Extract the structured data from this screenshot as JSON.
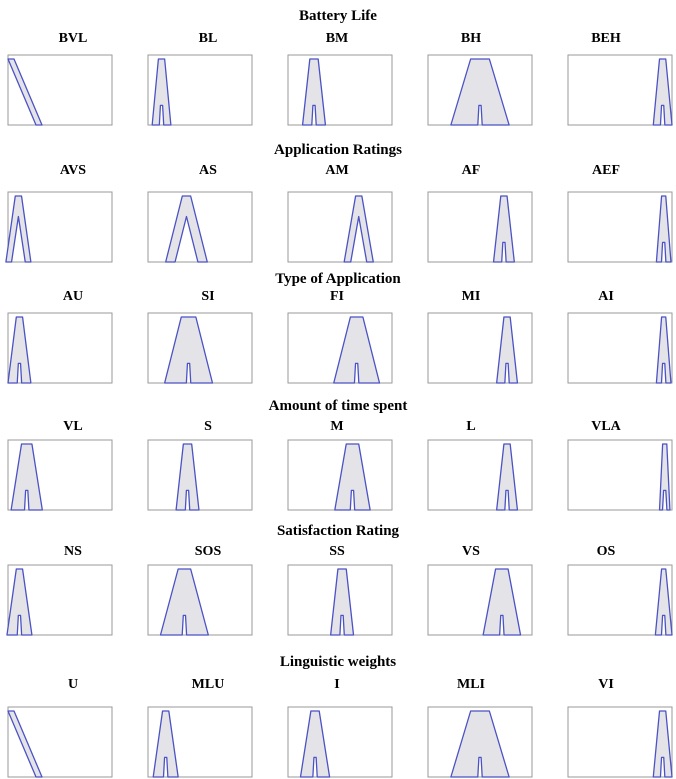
{
  "colors": {
    "outline": "#4b52c4",
    "fill": "#e4e4e8",
    "frame": "#9a9a9a"
  },
  "groups": [
    {
      "title": "Battery Life",
      "items": [
        {
          "label": "BVL",
          "shape": "falling"
        },
        {
          "label": "BL",
          "shape": "peak",
          "center": 0.13,
          "halfTop": 0.03,
          "halfBottom": 0.09
        },
        {
          "label": "BM",
          "shape": "peak",
          "center": 0.25,
          "halfTop": 0.04,
          "halfBottom": 0.11
        },
        {
          "label": "BH",
          "shape": "peak",
          "center": 0.5,
          "halfTop": 0.09,
          "halfBottom": 0.28
        },
        {
          "label": "BEH",
          "shape": "peak",
          "center": 0.91,
          "halfTop": 0.03,
          "halfBottom": 0.09
        }
      ]
    },
    {
      "title": "Application Ratings",
      "items": [
        {
          "label": "AVS",
          "shape": "tent",
          "center": 0.1,
          "halfTop": 0.03,
          "halfBottom": 0.12
        },
        {
          "label": "AS",
          "shape": "tent",
          "center": 0.37,
          "halfTop": 0.04,
          "halfBottom": 0.2
        },
        {
          "label": "AM",
          "shape": "tent",
          "center": 0.68,
          "halfTop": 0.03,
          "halfBottom": 0.14
        },
        {
          "label": "AF",
          "shape": "peak",
          "center": 0.73,
          "halfTop": 0.03,
          "halfBottom": 0.1
        },
        {
          "label": "AEF",
          "shape": "peak",
          "center": 0.92,
          "halfTop": 0.02,
          "halfBottom": 0.07
        }
      ]
    },
    {
      "title": "Type of Application",
      "items": [
        {
          "label": "AU",
          "shape": "peak",
          "center": 0.11,
          "halfTop": 0.03,
          "halfBottom": 0.11
        },
        {
          "label": "SI",
          "shape": "peak",
          "center": 0.39,
          "halfTop": 0.07,
          "halfBottom": 0.23
        },
        {
          "label": "FI",
          "shape": "peak",
          "center": 0.66,
          "halfTop": 0.06,
          "halfBottom": 0.22
        },
        {
          "label": "MI",
          "shape": "peak",
          "center": 0.76,
          "halfTop": 0.03,
          "halfBottom": 0.1
        },
        {
          "label": "AI",
          "shape": "peak",
          "center": 0.92,
          "halfTop": 0.02,
          "halfBottom": 0.07
        }
      ]
    },
    {
      "title": "Amount of time spent",
      "items": [
        {
          "label": "VL",
          "shape": "peak",
          "center": 0.18,
          "halfTop": 0.05,
          "halfBottom": 0.15
        },
        {
          "label": "S",
          "shape": "peak",
          "center": 0.38,
          "halfTop": 0.04,
          "halfBottom": 0.11
        },
        {
          "label": "M",
          "shape": "peak",
          "center": 0.62,
          "halfTop": 0.06,
          "halfBottom": 0.17
        },
        {
          "label": "L",
          "shape": "peak",
          "center": 0.76,
          "halfTop": 0.03,
          "halfBottom": 0.1
        },
        {
          "label": "VLA",
          "shape": "peak",
          "center": 0.93,
          "halfTop": 0.02,
          "halfBottom": 0.05
        }
      ]
    },
    {
      "title": "Satisfaction Rating",
      "items": [
        {
          "label": "NS",
          "shape": "peak",
          "center": 0.11,
          "halfTop": 0.03,
          "halfBottom": 0.12
        },
        {
          "label": "SOS",
          "shape": "peak",
          "center": 0.35,
          "halfTop": 0.06,
          "halfBottom": 0.23
        },
        {
          "label": "SS",
          "shape": "peak",
          "center": 0.52,
          "halfTop": 0.04,
          "halfBottom": 0.11
        },
        {
          "label": "VS",
          "shape": "peak",
          "center": 0.71,
          "halfTop": 0.06,
          "halfBottom": 0.18
        },
        {
          "label": "OS",
          "shape": "peak",
          "center": 0.92,
          "halfTop": 0.02,
          "halfBottom": 0.08
        }
      ]
    },
    {
      "title": "Linguistic weights",
      "items": [
        {
          "label": "U",
          "shape": "falling"
        },
        {
          "label": "MLU",
          "shape": "peak",
          "center": 0.17,
          "halfTop": 0.03,
          "halfBottom": 0.12
        },
        {
          "label": "I",
          "shape": "peak",
          "center": 0.26,
          "halfTop": 0.04,
          "halfBottom": 0.14
        },
        {
          "label": "MLI",
          "shape": "peak",
          "center": 0.5,
          "halfTop": 0.09,
          "halfBottom": 0.28
        },
        {
          "label": "VI",
          "shape": "peak",
          "center": 0.91,
          "halfTop": 0.03,
          "halfBottom": 0.09
        }
      ]
    }
  ]
}
